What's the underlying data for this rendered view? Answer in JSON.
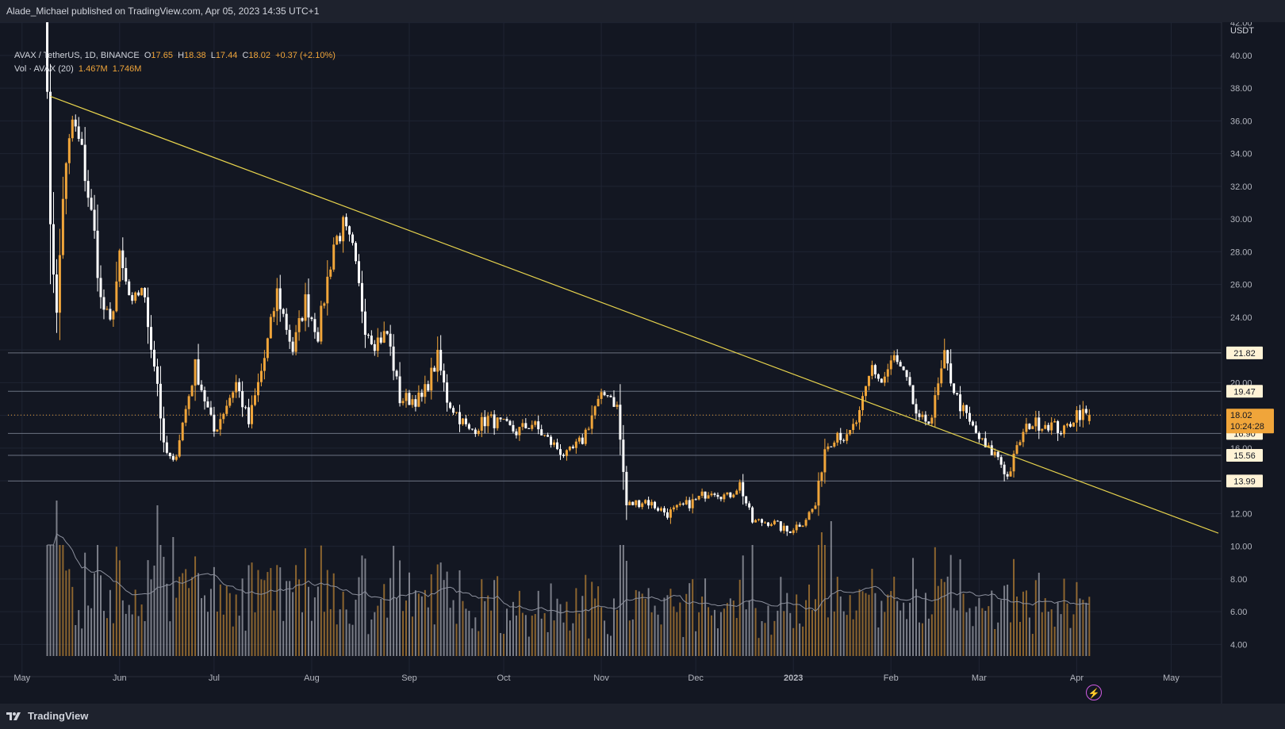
{
  "header": {
    "publisher_text": "Alade_Michael published on TradingView.com, Apr 05, 2023 14:35 UTC+1"
  },
  "legend": {
    "symbol": "AVAX / TetherUS, 1D, BINANCE",
    "open_label": "O",
    "open": "17.65",
    "high_label": "H",
    "high": "18.38",
    "low_label": "L",
    "low": "17.44",
    "close_label": "C",
    "close": "18.02",
    "change": "+0.37 (+2.10%)",
    "volume_label": "Vol · AVAX (20)",
    "volume": "1.467M",
    "volume_ma": "1.746M"
  },
  "footer": {
    "brand": "TradingView"
  },
  "colors": {
    "background": "#131722",
    "up": "#f0a53a",
    "down": "#ffffff",
    "trendline": "#e8d44d",
    "level_line": "#6b7280",
    "current_price": "#f0a53a"
  },
  "chart_data": {
    "type": "candlestick",
    "symbol": "AVAX / TetherUS",
    "interval": "1D",
    "exchange": "BINANCE",
    "y_axis_unit": "USDT",
    "ylim": [
      3,
      43
    ],
    "y_ticks": [
      4,
      6,
      8,
      10,
      12,
      14,
      16,
      18,
      20,
      22,
      24,
      26,
      28,
      30,
      32,
      34,
      36,
      38,
      40,
      42
    ],
    "x_labels": [
      "May",
      "Jun",
      "Jul",
      "Aug",
      "Sep",
      "Oct",
      "Nov",
      "Dec",
      "2023",
      "Feb",
      "Mar",
      "Apr",
      "May"
    ],
    "x_range": [
      "2022-04-24",
      "2023-05-17"
    ],
    "legend_position": "top-left",
    "grid": true,
    "anchors": [
      [
        "2022-05-08",
        44.0
      ],
      [
        "2022-05-10",
        30.0
      ],
      [
        "2022-05-12",
        24.0
      ],
      [
        "2022-05-14",
        31.5
      ],
      [
        "2022-05-17",
        36.0
      ],
      [
        "2022-05-20",
        34.0
      ],
      [
        "2022-05-24",
        29.0
      ],
      [
        "2022-05-26",
        25.0
      ],
      [
        "2022-05-29",
        23.5
      ],
      [
        "2022-06-01",
        27.5
      ],
      [
        "2022-06-05",
        24.5
      ],
      [
        "2022-06-08",
        26.0
      ],
      [
        "2022-06-13",
        20.0
      ],
      [
        "2022-06-15",
        16.0
      ],
      [
        "2022-06-18",
        15.0
      ],
      [
        "2022-06-21",
        17.5
      ],
      [
        "2022-06-25",
        21.0
      ],
      [
        "2022-07-01",
        17.0
      ],
      [
        "2022-07-08",
        20.0
      ],
      [
        "2022-07-12",
        17.5
      ],
      [
        "2022-07-17",
        21.5
      ],
      [
        "2022-07-21",
        25.5
      ],
      [
        "2022-07-26",
        22.0
      ],
      [
        "2022-07-30",
        25.0
      ],
      [
        "2022-08-03",
        23.0
      ],
      [
        "2022-08-08",
        28.5
      ],
      [
        "2022-08-11",
        29.5
      ],
      [
        "2022-08-14",
        28.0
      ],
      [
        "2022-08-18",
        23.5
      ],
      [
        "2022-08-21",
        22.5
      ],
      [
        "2022-08-25",
        23.0
      ],
      [
        "2022-08-29",
        19.0
      ],
      [
        "2022-09-05",
        19.0
      ],
      [
        "2022-09-10",
        21.5
      ],
      [
        "2022-09-13",
        19.0
      ],
      [
        "2022-09-20",
        17.0
      ],
      [
        "2022-09-26",
        17.8
      ],
      [
        "2022-10-05",
        17.0
      ],
      [
        "2022-10-10",
        17.5
      ],
      [
        "2022-10-15",
        16.5
      ],
      [
        "2022-10-21",
        15.5
      ],
      [
        "2022-10-26",
        16.5
      ],
      [
        "2022-10-30",
        18.5
      ],
      [
        "2022-11-03",
        19.5
      ],
      [
        "2022-11-06",
        18.5
      ],
      [
        "2022-11-09",
        12.5
      ],
      [
        "2022-11-15",
        12.8
      ],
      [
        "2022-11-22",
        12.0
      ],
      [
        "2022-12-01",
        12.8
      ],
      [
        "2022-12-06",
        13.5
      ],
      [
        "2022-12-11",
        13.0
      ],
      [
        "2022-12-15",
        13.8
      ],
      [
        "2022-12-19",
        11.5
      ],
      [
        "2022-12-25",
        11.5
      ],
      [
        "2022-12-30",
        10.9
      ],
      [
        "2023-01-04",
        11.5
      ],
      [
        "2023-01-08",
        12.5
      ],
      [
        "2023-01-11",
        16.0
      ],
      [
        "2023-01-15",
        17.0
      ],
      [
        "2023-01-18",
        16.5
      ],
      [
        "2023-01-22",
        18.0
      ],
      [
        "2023-01-26",
        21.0
      ],
      [
        "2023-01-29",
        20.0
      ],
      [
        "2023-02-02",
        21.5
      ],
      [
        "2023-02-06",
        20.0
      ],
      [
        "2023-02-10",
        17.5
      ],
      [
        "2023-02-14",
        18.0
      ],
      [
        "2023-02-18",
        21.5
      ],
      [
        "2023-02-22",
        19.0
      ],
      [
        "2023-02-26",
        17.5
      ],
      [
        "2023-03-03",
        16.0
      ],
      [
        "2023-03-07",
        15.5
      ],
      [
        "2023-03-10",
        14.2
      ],
      [
        "2023-03-14",
        16.5
      ],
      [
        "2023-03-17",
        17.5
      ],
      [
        "2023-03-23",
        17.5
      ],
      [
        "2023-03-28",
        17.0
      ],
      [
        "2023-04-01",
        18.2
      ],
      [
        "2023-04-05",
        18.02
      ]
    ],
    "trendline": {
      "from": [
        "2022-05-10",
        37.5
      ],
      "to": [
        "2023-05-16",
        10.8
      ]
    },
    "horizontal_levels": [
      21.82,
      19.47,
      16.9,
      15.56,
      13.99
    ],
    "last_price": 18.02,
    "countdown": "10:24:28",
    "volume_series": {
      "name": "Vol · AVAX (20)",
      "ma_length": 20,
      "spikes": [
        [
          "2022-05-08",
          1.0
        ],
        [
          "2022-05-12",
          0.98
        ],
        [
          "2022-06-13",
          0.95
        ],
        [
          "2022-06-18",
          0.75
        ],
        [
          "2022-11-09",
          0.6
        ],
        [
          "2023-01-10",
          0.78
        ],
        [
          "2023-01-13",
          0.85
        ],
        [
          "2023-01-26",
          0.55
        ],
        [
          "2023-02-02",
          0.5
        ],
        [
          "2023-03-10",
          0.45
        ]
      ]
    }
  }
}
